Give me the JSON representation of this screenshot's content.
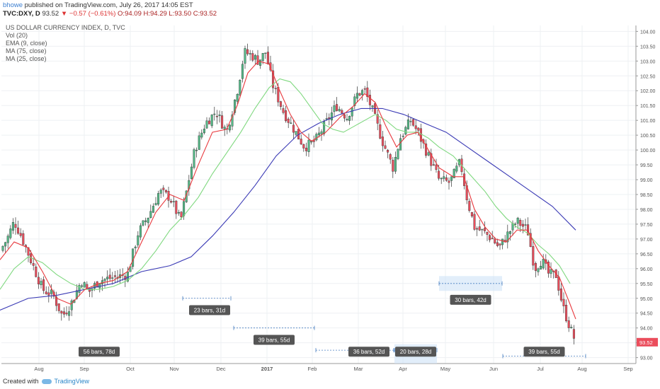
{
  "header": {
    "user": "bhowe",
    "published": "published on TradingView.com, July 26, 2017 14:05 EST",
    "symbol": "TVC:DXY, D",
    "price": "93.52",
    "arrow": "▼",
    "change": "−0.57 (−0.61%)",
    "ohlc": "O:94.09 H:94.29 L:93.50 C:93.52"
  },
  "legend": {
    "title": "US DOLLAR CURRENCY INDEX, D, TVC",
    "items": [
      "Vol (20)",
      "EMA (9, close)",
      "MA (75, close)",
      "MA (25, close)"
    ]
  },
  "footer": {
    "created": "Created with",
    "brand": "TradingView"
  },
  "chart_data": {
    "type": "candlestick",
    "y_range": [
      92.8,
      104.2
    ],
    "y_ticks": [
      "104.00",
      "103.50",
      "103.00",
      "102.50",
      "102.00",
      "101.50",
      "101.00",
      "100.50",
      "100.00",
      "99.50",
      "99.00",
      "98.50",
      "98.00",
      "97.50",
      "97.00",
      "96.50",
      "96.00",
      "95.50",
      "95.00",
      "94.50",
      "94.00",
      "93.50",
      "93.00"
    ],
    "x_ticks": [
      "Aug",
      "Sep",
      "Oct",
      "Nov",
      "Dec",
      "2017",
      "Feb",
      "Mar",
      "Apr",
      "May",
      "Jun",
      "Jul",
      "Aug",
      "Sep"
    ],
    "last_price_label": "93.52",
    "colors": {
      "up": "#53b987",
      "down": "#eb4d5c",
      "ema9": "#e8383d",
      "ma75": "#3a3ab5",
      "ma25": "#7fd87f"
    },
    "close_path": [
      [
        0,
        96.6
      ],
      [
        10,
        97.0
      ],
      [
        20,
        97.6
      ],
      [
        30,
        97.1
      ],
      [
        45,
        96.2
      ],
      [
        60,
        95.3
      ],
      [
        75,
        95.1
      ],
      [
        88,
        94.4
      ],
      [
        100,
        94.8
      ],
      [
        115,
        95.6
      ],
      [
        125,
        95.2
      ],
      [
        140,
        95.6
      ],
      [
        160,
        95.7
      ],
      [
        180,
        95.8
      ],
      [
        195,
        97.2
      ],
      [
        210,
        97.8
      ],
      [
        225,
        98.6
      ],
      [
        240,
        98.4
      ],
      [
        255,
        97.6
      ],
      [
        265,
        98.8
      ],
      [
        275,
        100.0
      ],
      [
        290,
        100.9
      ],
      [
        305,
        101.3
      ],
      [
        320,
        100.6
      ],
      [
        335,
        102.0
      ],
      [
        345,
        103.3
      ],
      [
        355,
        103.2
      ],
      [
        365,
        103.0
      ],
      [
        375,
        103.3
      ],
      [
        385,
        102.2
      ],
      [
        400,
        101.3
      ],
      [
        415,
        100.7
      ],
      [
        430,
        100.1
      ],
      [
        445,
        100.3
      ],
      [
        460,
        100.9
      ],
      [
        475,
        101.5
      ],
      [
        490,
        101.1
      ],
      [
        505,
        101.9
      ],
      [
        515,
        102.0
      ],
      [
        525,
        101.4
      ],
      [
        540,
        100.3
      ],
      [
        555,
        99.4
      ],
      [
        565,
        100.4
      ],
      [
        580,
        101.0
      ],
      [
        590,
        100.6
      ],
      [
        605,
        99.8
      ],
      [
        620,
        99.0
      ],
      [
        635,
        98.9
      ],
      [
        650,
        99.6
      ],
      [
        660,
        98.3
      ],
      [
        670,
        97.4
      ],
      [
        685,
        97.2
      ],
      [
        695,
        97.0
      ],
      [
        705,
        96.7
      ],
      [
        715,
        97.1
      ],
      [
        730,
        97.6
      ],
      [
        745,
        97.3
      ],
      [
        755,
        96.0
      ],
      [
        765,
        96.3
      ],
      [
        775,
        95.8
      ],
      [
        785,
        95.8
      ],
      [
        795,
        94.7
      ],
      [
        805,
        94.0
      ],
      [
        813,
        93.52
      ]
    ],
    "ema9_path": [
      [
        0,
        96.3
      ],
      [
        20,
        96.9
      ],
      [
        40,
        96.7
      ],
      [
        60,
        95.9
      ],
      [
        80,
        95.0
      ],
      [
        100,
        94.8
      ],
      [
        120,
        95.3
      ],
      [
        140,
        95.5
      ],
      [
        160,
        95.6
      ],
      [
        180,
        95.9
      ],
      [
        200,
        96.9
      ],
      [
        220,
        97.9
      ],
      [
        240,
        98.5
      ],
      [
        260,
        98.3
      ],
      [
        280,
        99.5
      ],
      [
        300,
        100.6
      ],
      [
        320,
        100.7
      ],
      [
        335,
        101.5
      ],
      [
        350,
        102.6
      ],
      [
        365,
        103.0
      ],
      [
        380,
        102.9
      ],
      [
        395,
        102.0
      ],
      [
        410,
        101.2
      ],
      [
        425,
        100.6
      ],
      [
        440,
        100.3
      ],
      [
        460,
        100.6
      ],
      [
        480,
        101.1
      ],
      [
        500,
        101.5
      ],
      [
        515,
        101.9
      ],
      [
        530,
        101.6
      ],
      [
        545,
        100.8
      ],
      [
        560,
        100.1
      ],
      [
        575,
        100.5
      ],
      [
        590,
        100.6
      ],
      [
        605,
        100.0
      ],
      [
        620,
        99.4
      ],
      [
        640,
        99.1
      ],
      [
        655,
        99.1
      ],
      [
        670,
        98.0
      ],
      [
        685,
        97.4
      ],
      [
        700,
        97.0
      ],
      [
        715,
        96.9
      ],
      [
        730,
        97.3
      ],
      [
        745,
        97.3
      ],
      [
        760,
        96.6
      ],
      [
        775,
        96.1
      ],
      [
        790,
        95.7
      ],
      [
        805,
        94.8
      ],
      [
        813,
        94.3
      ]
    ],
    "ma25_path": [
      [
        0,
        95.3
      ],
      [
        20,
        96.0
      ],
      [
        40,
        96.4
      ],
      [
        60,
        96.2
      ],
      [
        80,
        95.8
      ],
      [
        100,
        95.5
      ],
      [
        120,
        95.3
      ],
      [
        140,
        95.3
      ],
      [
        160,
        95.4
      ],
      [
        180,
        95.6
      ],
      [
        200,
        96.0
      ],
      [
        220,
        96.6
      ],
      [
        240,
        97.3
      ],
      [
        260,
        97.8
      ],
      [
        280,
        98.4
      ],
      [
        300,
        99.2
      ],
      [
        320,
        99.9
      ],
      [
        340,
        100.6
      ],
      [
        360,
        101.4
      ],
      [
        380,
        102.1
      ],
      [
        395,
        102.4
      ],
      [
        410,
        102.3
      ],
      [
        425,
        101.9
      ],
      [
        440,
        101.4
      ],
      [
        455,
        100.9
      ],
      [
        470,
        100.7
      ],
      [
        485,
        100.6
      ],
      [
        500,
        100.8
      ],
      [
        515,
        101.0
      ],
      [
        530,
        101.2
      ],
      [
        545,
        101.0
      ],
      [
        560,
        100.7
      ],
      [
        575,
        100.6
      ],
      [
        590,
        100.6
      ],
      [
        605,
        100.4
      ],
      [
        620,
        100.1
      ],
      [
        640,
        99.8
      ],
      [
        655,
        99.4
      ],
      [
        670,
        99.0
      ],
      [
        685,
        98.6
      ],
      [
        700,
        98.1
      ],
      [
        715,
        97.7
      ],
      [
        730,
        97.4
      ],
      [
        745,
        97.2
      ],
      [
        760,
        96.8
      ],
      [
        775,
        96.5
      ],
      [
        790,
        96.1
      ],
      [
        805,
        95.5
      ]
    ],
    "ma75_path": [
      [
        0,
        94.6
      ],
      [
        40,
        95.0
      ],
      [
        80,
        95.1
      ],
      [
        120,
        95.3
      ],
      [
        160,
        95.5
      ],
      [
        200,
        95.9
      ],
      [
        240,
        96.1
      ],
      [
        270,
        96.4
      ],
      [
        300,
        97.1
      ],
      [
        330,
        97.9
      ],
      [
        360,
        98.8
      ],
      [
        390,
        99.8
      ],
      [
        420,
        100.5
      ],
      [
        450,
        100.9
      ],
      [
        480,
        101.2
      ],
      [
        510,
        101.4
      ],
      [
        540,
        101.4
      ],
      [
        570,
        101.2
      ],
      [
        600,
        100.9
      ],
      [
        630,
        100.6
      ],
      [
        660,
        100.1
      ],
      [
        690,
        99.6
      ],
      [
        720,
        99.1
      ],
      [
        750,
        98.6
      ],
      [
        780,
        98.1
      ],
      [
        813,
        97.3
      ]
    ],
    "annotations": [
      {
        "label": "23 bars, 31d",
        "t0": 258,
        "t1": 326,
        "price": 95.0,
        "box_price": 94.6
      },
      {
        "label": "39 bars, 55d",
        "t0": 330,
        "t1": 444,
        "price": 94.0,
        "box_price": 93.6
      },
      {
        "label": "56 bars, 78d",
        "t0": 140,
        "t1": 140,
        "price": 93.2,
        "box_price": 93.2
      },
      {
        "label": "36 bars, 52d",
        "t0": 446,
        "t1": 556,
        "price": 93.25,
        "box_price": 93.2
      },
      {
        "label": "20 bars, 28d",
        "t0": 557,
        "t1": 617,
        "price": 93.25,
        "box_price": 93.2
      },
      {
        "label": "30 bars, 42d",
        "t0": 620,
        "t1": 709,
        "price": 95.5,
        "box_price": 94.95
      },
      {
        "label": "39 bars, 55d",
        "t0": 710,
        "t1": 827,
        "price": 93.05,
        "box_price": 93.2
      }
    ]
  }
}
